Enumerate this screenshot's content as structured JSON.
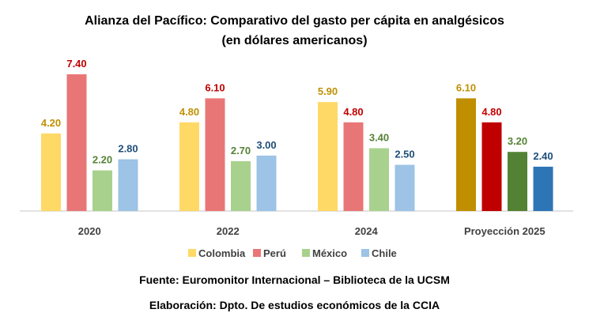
{
  "chart_data": {
    "type": "bar",
    "title": "Alianza del Pacífico: Comparativo del gasto per cápita en analgésicos",
    "subtitle": "(en dólares americanos)",
    "categories": [
      "2020",
      "2022",
      "2024",
      "Proyección 2025"
    ],
    "series": [
      {
        "name": "Colombia",
        "values": [
          4.2,
          4.8,
          5.9,
          6.1
        ],
        "color": "#FFD966",
        "projection_color": "#BF8F00",
        "label_color": "#BF9000"
      },
      {
        "name": "Perú",
        "values": [
          7.4,
          6.1,
          4.8,
          4.8
        ],
        "color": "#E97676",
        "projection_color": "#C00000",
        "label_color": "#C00000"
      },
      {
        "name": "México",
        "values": [
          2.2,
          2.7,
          3.4,
          3.2
        ],
        "color": "#A9D18E",
        "projection_color": "#548235",
        "label_color": "#548235"
      },
      {
        "name": "Chile",
        "values": [
          2.8,
          3.0,
          2.5,
          2.4
        ],
        "color": "#9DC3E6",
        "projection_color": "#2E75B6",
        "label_color": "#1F4E79"
      }
    ],
    "ylim": [
      0,
      7.4
    ],
    "grid": false,
    "legend": "bottom"
  },
  "footer": {
    "source": "Fuente: Euromonitor Internacional – Biblioteca de la UCSM",
    "credit": "Elaboración: Dpto. De estudios económicos de la CCIA"
  }
}
